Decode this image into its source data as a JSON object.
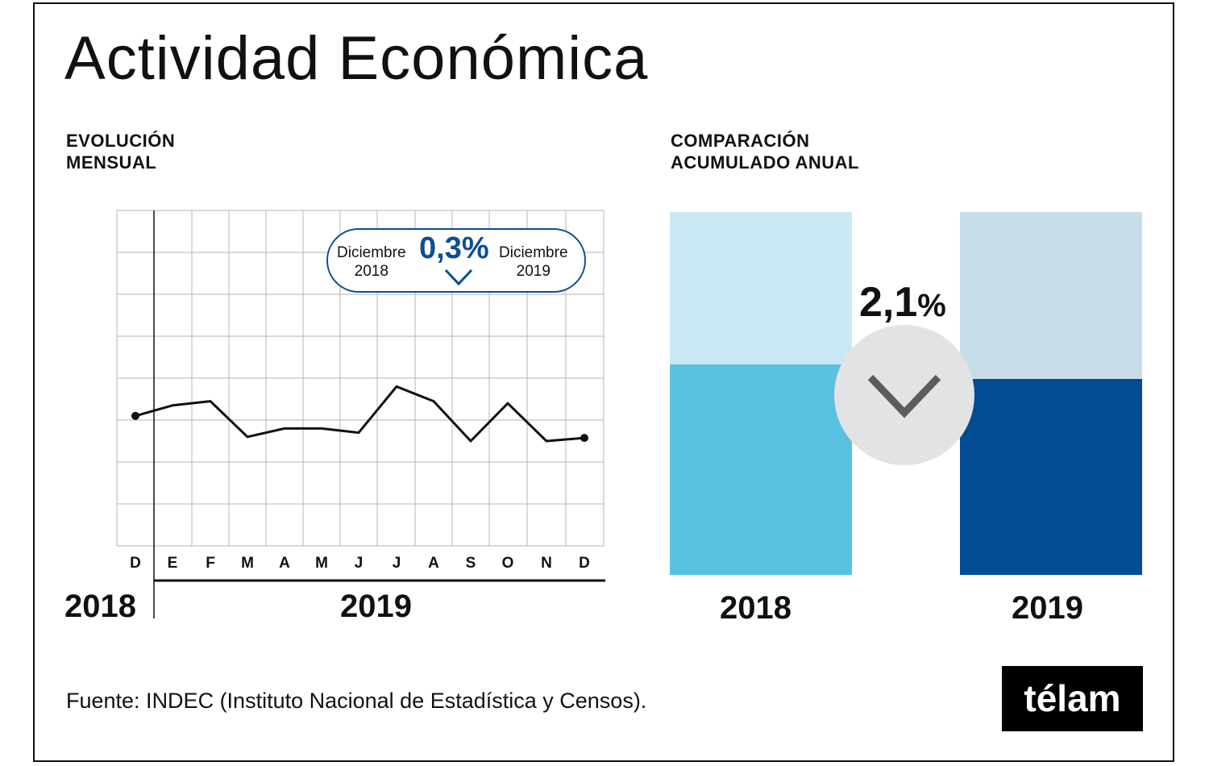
{
  "title": "Actividad Económica",
  "left_panel": {
    "subtitle_line1": "EVOLUCIÓN",
    "subtitle_line2": "MENSUAL",
    "year_start": "2018",
    "year_main": "2019",
    "callout": {
      "from_line1": "Diciembre",
      "from_line2": "2018",
      "value": "0,3%",
      "to_line1": "Diciembre",
      "to_line2": "2019",
      "direction_icon": "chevron-down-icon"
    }
  },
  "right_panel": {
    "subtitle_line1": "COMPARACIÓN",
    "subtitle_line2": "ACUMULADO ANUAL",
    "change_value": "2,1",
    "change_unit": "%",
    "direction_icon": "chevron-down-icon",
    "year_a": "2018",
    "year_b": "2019"
  },
  "source": "Fuente: INDEC (Instituto Nacional de Estadística y Censos).",
  "logo": "télam",
  "colors": {
    "light_blue_top": "#c8e8f3",
    "cyan_bar": "#5bc1e0",
    "pale_blue_top": "#c6dde9",
    "dark_blue_bar": "#034c93",
    "callout_blue": "#0b4e96",
    "circle_grey": "#e3e3e3",
    "chevron_grey": "#5b5d5b"
  },
  "chart_data": [
    {
      "type": "line",
      "categories": [
        "D",
        "E",
        "F",
        "M",
        "A",
        "M",
        "J",
        "J",
        "A",
        "S",
        "O",
        "N",
        "D"
      ],
      "values": [
        62,
        67,
        69,
        52,
        56,
        56,
        54,
        76,
        69,
        50,
        68,
        50,
        51.5
      ],
      "ylim": [
        0,
        160
      ],
      "grid": true,
      "unit_note": "relative level, no y-axis scale printed"
    },
    {
      "type": "bar",
      "stacked": true,
      "categories": [
        "2018",
        "2019"
      ],
      "series": [
        {
          "values": [
            58,
            54
          ]
        },
        {
          "values": [
            42,
            46
          ]
        }
      ],
      "annotation": "2,1%"
    }
  ]
}
